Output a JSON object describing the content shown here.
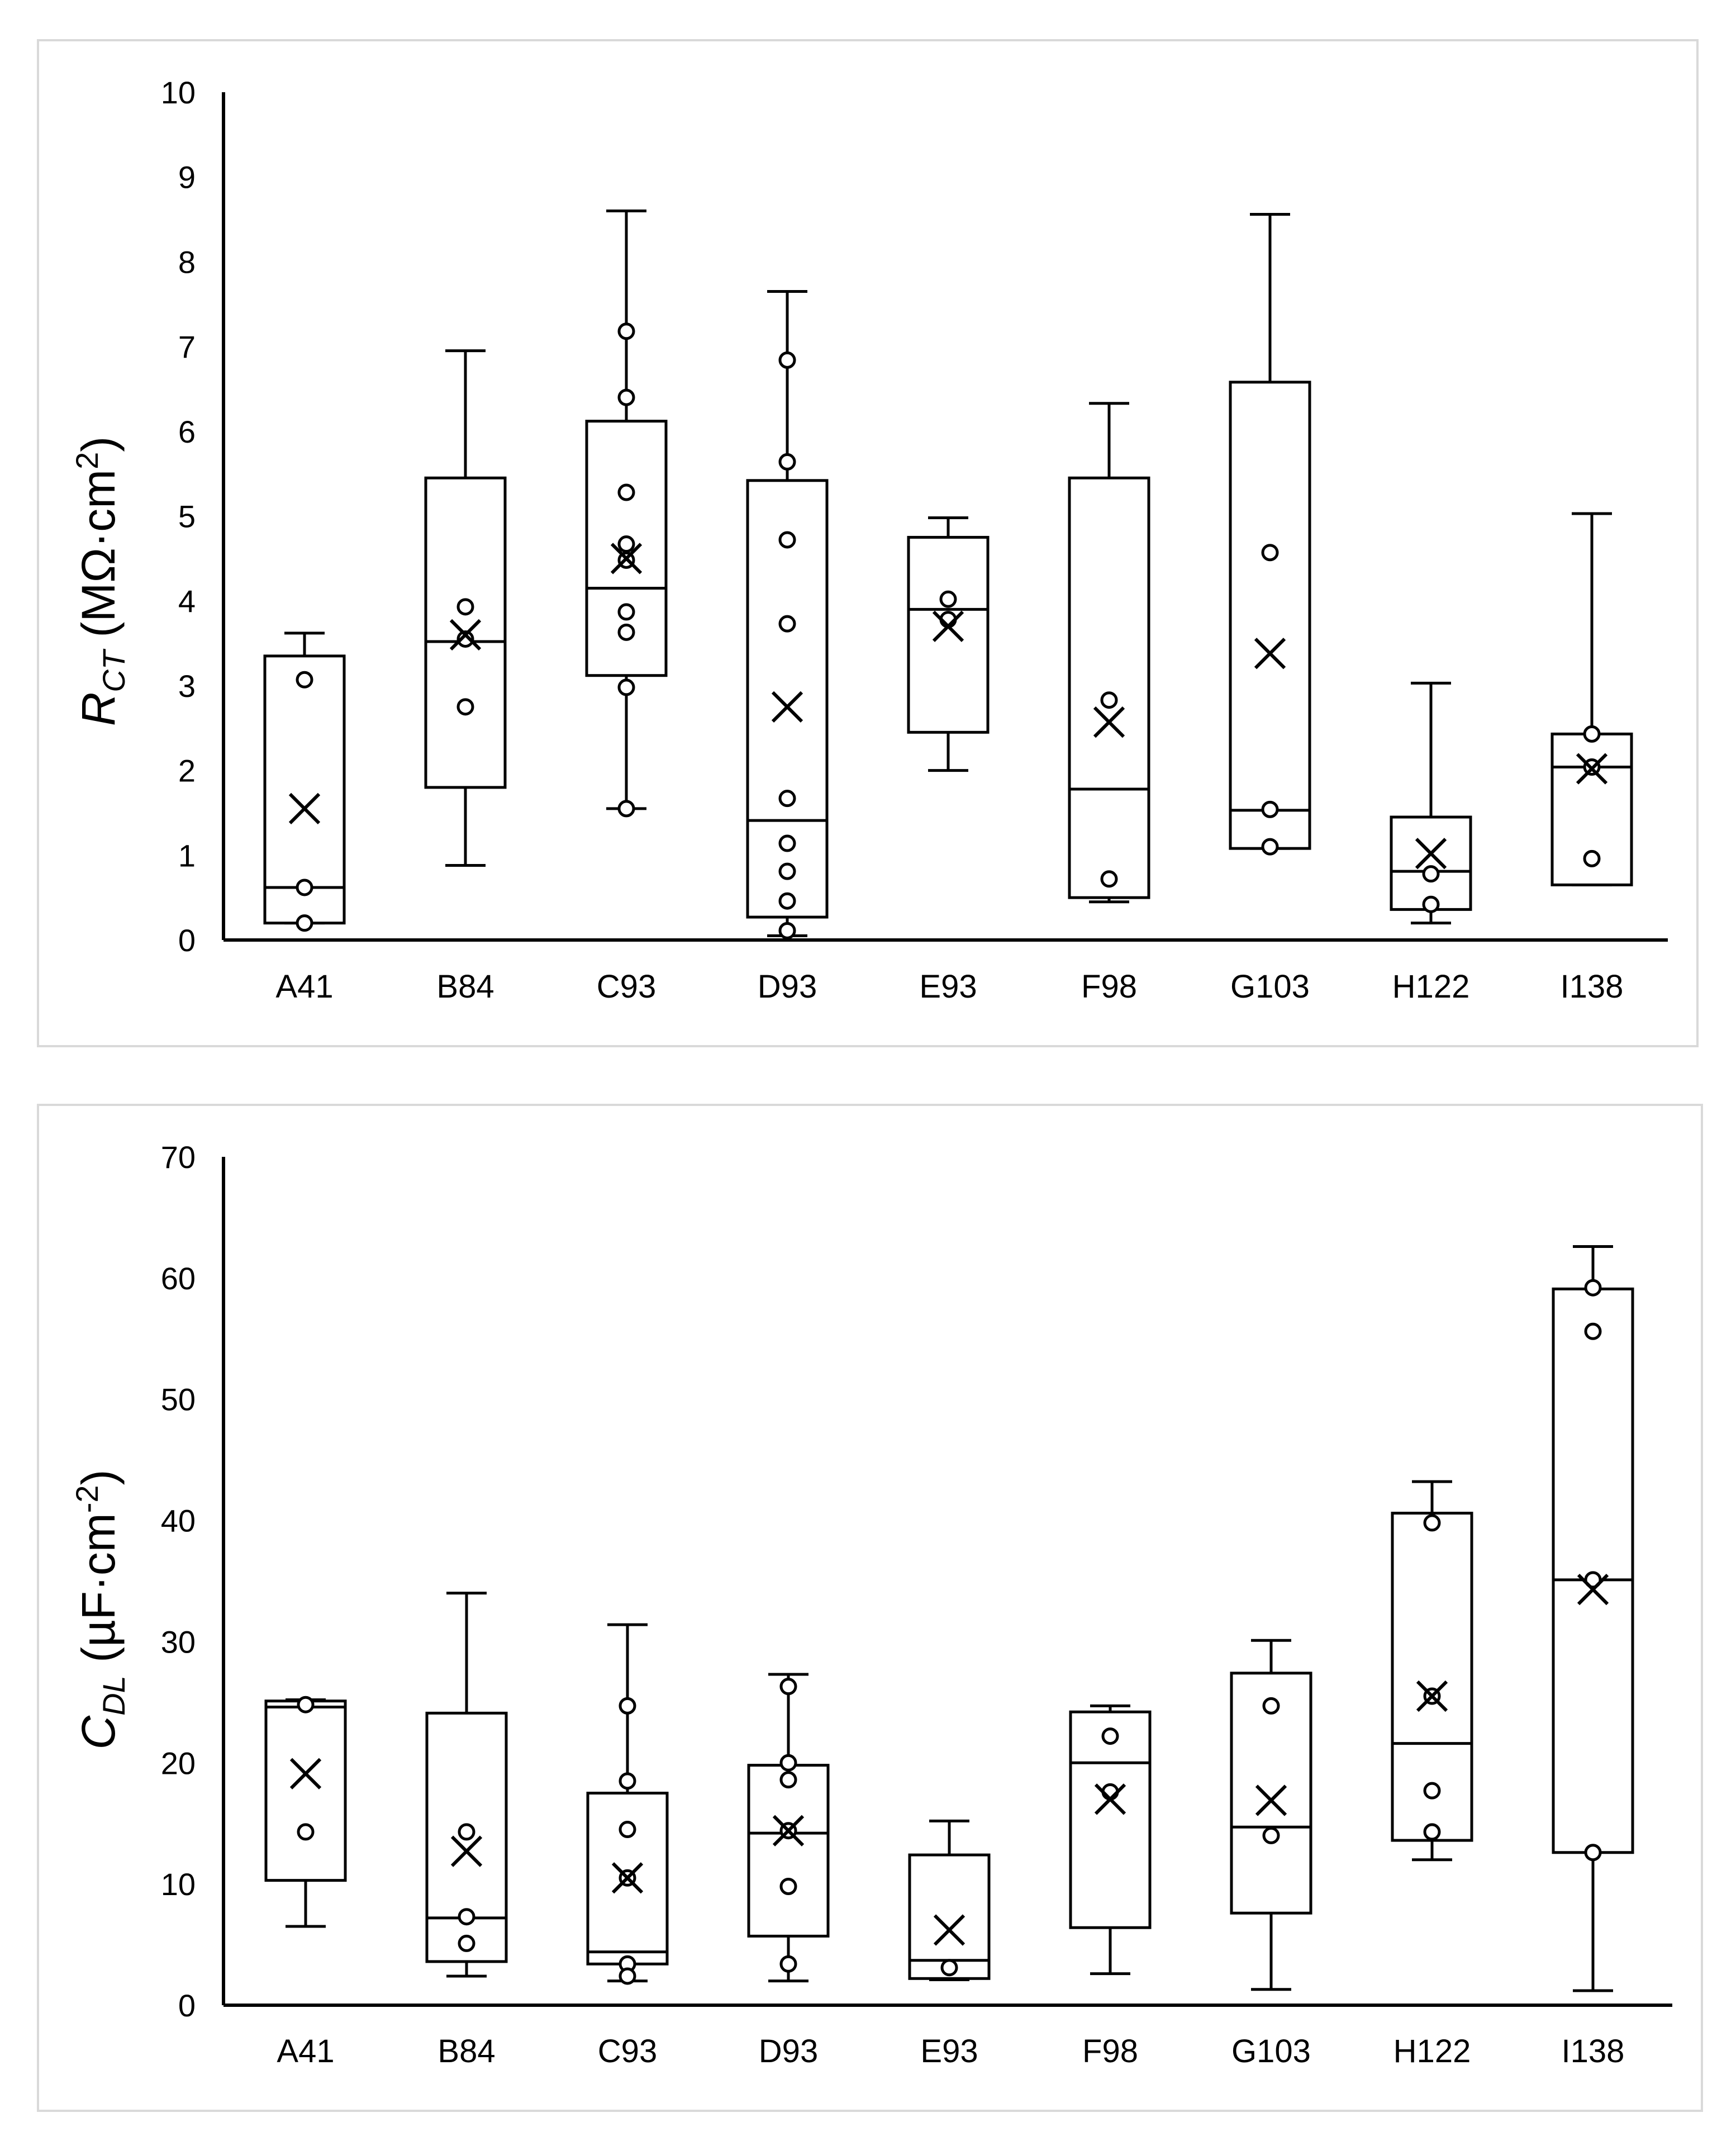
{
  "chart_data": [
    {
      "type": "box",
      "ylabel": {
        "symbol": "R",
        "subscript": "CT",
        "unit": " (MΩ·cm",
        "unit_sup": "2",
        "unit_end": ")"
      },
      "ylim": [
        0,
        10
      ],
      "yticks": [
        "0",
        "1",
        "2",
        "3",
        "4",
        "5",
        "6",
        "7",
        "8",
        "9",
        "10"
      ],
      "categories": [
        "A41",
        "B84",
        "C93",
        "D93",
        "E93",
        "F98",
        "G103",
        "H122",
        "I138"
      ],
      "boxes": [
        {
          "min": 0.2,
          "q1": 0.2,
          "median": 0.62,
          "q3": 3.35,
          "max": 3.62,
          "mean": 1.55,
          "points": [
            3.07,
            0.62,
            0.2
          ]
        },
        {
          "min": 0.88,
          "q1": 1.8,
          "median": 3.52,
          "q3": 5.45,
          "max": 6.95,
          "mean": 3.6,
          "points": [
            3.93,
            3.55,
            2.75
          ]
        },
        {
          "min": 1.55,
          "q1": 3.12,
          "median": 4.15,
          "q3": 6.12,
          "max": 8.6,
          "mean": 4.5,
          "points": [
            7.18,
            6.4,
            5.28,
            4.67,
            4.48,
            3.87,
            3.63,
            2.98,
            1.55
          ]
        },
        {
          "min": 0.05,
          "q1": 0.27,
          "median": 1.41,
          "q3": 5.42,
          "max": 7.65,
          "mean": 2.75,
          "points": [
            6.84,
            5.64,
            4.72,
            3.73,
            1.67,
            1.14,
            0.81,
            0.46,
            0.11
          ]
        },
        {
          "min": 2.0,
          "q1": 2.45,
          "median": 3.9,
          "q3": 4.75,
          "max": 4.98,
          "mean": 3.7,
          "points": [
            4.02,
            3.78
          ]
        },
        {
          "min": 0.45,
          "q1": 0.5,
          "median": 1.78,
          "q3": 5.45,
          "max": 6.33,
          "mean": 2.57,
          "points": [
            2.83,
            0.72
          ]
        },
        {
          "min": 1.08,
          "q1": 1.08,
          "median": 1.53,
          "q3": 6.58,
          "max": 8.56,
          "mean": 3.38,
          "points": [
            4.57,
            1.54,
            1.1
          ]
        },
        {
          "min": 0.2,
          "q1": 0.36,
          "median": 0.81,
          "q3": 1.45,
          "max": 3.03,
          "mean": 1.02,
          "points": [
            0.78,
            0.42
          ]
        },
        {
          "min": 0.65,
          "q1": 0.65,
          "median": 2.04,
          "q3": 2.43,
          "max": 5.03,
          "mean": 2.02,
          "points": [
            2.43,
            2.04,
            0.96
          ]
        }
      ]
    },
    {
      "type": "box",
      "ylabel": {
        "symbol": "C",
        "subscript": "DL",
        "unit": " (µF·cm",
        "unit_sup": "-2",
        "unit_end": ")"
      },
      "ylim": [
        0,
        70
      ],
      "yticks": [
        "0",
        "10",
        "20",
        "30",
        "40",
        "50",
        "60",
        "70"
      ],
      "categories": [
        "A41",
        "B84",
        "C93",
        "D93",
        "E93",
        "F98",
        "G103",
        "H122",
        "I138"
      ],
      "boxes": [
        {
          "min": 6.5,
          "q1": 10.3,
          "median": 24.6,
          "q3": 25.1,
          "max": 25.2,
          "mean": 19.1,
          "points": [
            24.8,
            14.3
          ]
        },
        {
          "min": 2.4,
          "q1": 3.6,
          "median": 7.2,
          "q3": 24.1,
          "max": 34.0,
          "mean": 12.7,
          "points": [
            14.3,
            7.3,
            5.1
          ]
        },
        {
          "min": 2.0,
          "q1": 3.4,
          "median": 4.4,
          "q3": 17.5,
          "max": 31.4,
          "mean": 10.5,
          "points": [
            24.7,
            18.5,
            14.5,
            10.5,
            3.4,
            2.4
          ]
        },
        {
          "min": 2.0,
          "q1": 5.7,
          "median": 14.2,
          "q3": 19.8,
          "max": 27.3,
          "mean": 14.4,
          "points": [
            26.3,
            20.0,
            18.6,
            14.4,
            9.8,
            3.4
          ]
        },
        {
          "min": 2.1,
          "q1": 2.2,
          "median": 3.7,
          "q3": 12.4,
          "max": 15.2,
          "mean": 6.2,
          "points": [
            3.1
          ]
        },
        {
          "min": 2.6,
          "q1": 6.4,
          "median": 20.0,
          "q3": 24.2,
          "max": 24.7,
          "mean": 17.0,
          "points": [
            22.2,
            17.6
          ]
        },
        {
          "min": 1.3,
          "q1": 7.6,
          "median": 14.7,
          "q3": 27.4,
          "max": 30.1,
          "mean": 16.9,
          "points": [
            24.7,
            14.0
          ]
        },
        {
          "min": 12.0,
          "q1": 13.6,
          "median": 21.6,
          "q3": 40.6,
          "max": 43.2,
          "mean": 25.5,
          "points": [
            39.8,
            25.5,
            17.7,
            14.3
          ]
        },
        {
          "min": 1.2,
          "q1": 12.6,
          "median": 35.1,
          "q3": 59.1,
          "max": 62.6,
          "mean": 34.3,
          "points": [
            59.2,
            55.6,
            35.1,
            12.6
          ]
        }
      ]
    }
  ]
}
